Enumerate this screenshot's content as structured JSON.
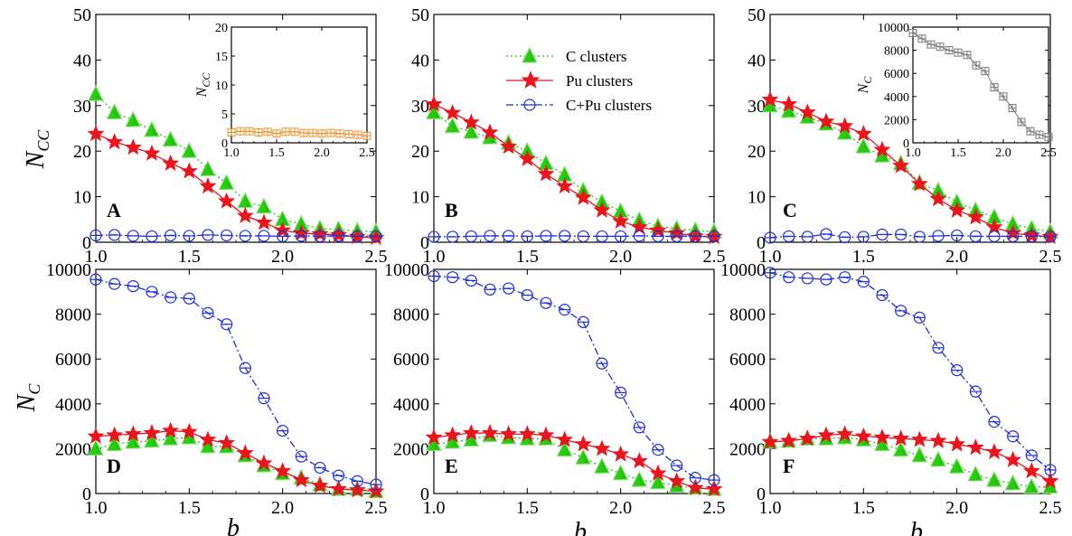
{
  "colors": {
    "c_clusters": "#22c40a",
    "pu_clusters": "#e8141e",
    "cpu_clusters": "#1f2fd6",
    "inset_A": "#e8922e",
    "inset_C": "#7a7a7a"
  },
  "axis_labels": {
    "ncc_main": "N",
    "ncc_sub": "CC",
    "nc_main": "N",
    "nc_sub": "C",
    "x": "b"
  },
  "inset_labels": {
    "ncc_main": "N",
    "ncc_sub": "CC",
    "nc_main": "N",
    "nc_sub": "C"
  },
  "legend": {
    "c_clusters": "C clusters",
    "pu_clusters": "Pu clusters",
    "cpu_clusters": "C+Pu clusters"
  },
  "chart_data": [
    {
      "panel": "A",
      "type": "line",
      "x": [
        1.0,
        1.1,
        1.2,
        1.3,
        1.4,
        1.5,
        1.6,
        1.7,
        1.8,
        1.9,
        2.0,
        2.1,
        2.2,
        2.3,
        2.4,
        2.5
      ],
      "xlim": [
        1.0,
        2.5
      ],
      "ylim": [
        0,
        50
      ],
      "xticks": [
        "1.0",
        "1.5",
        "2.0",
        "2.5"
      ],
      "yticks": [
        "0",
        "10",
        "20",
        "30",
        "40",
        "50"
      ],
      "series": [
        {
          "name": "C clusters",
          "values": [
            32.5,
            28.5,
            26.8,
            24.6,
            22.5,
            20.0,
            16.0,
            13.0,
            9.0,
            7.8,
            5.0,
            4.0,
            3.0,
            2.8,
            2.5,
            2.3
          ]
        },
        {
          "name": "Pu clusters",
          "values": [
            23.8,
            22.0,
            20.8,
            19.5,
            17.3,
            15.6,
            12.3,
            9.0,
            5.8,
            4.3,
            2.6,
            2.0,
            1.8,
            1.6,
            1.2,
            1.0
          ]
        },
        {
          "name": "C+Pu clusters",
          "values": [
            1.5,
            1.6,
            1.4,
            1.3,
            1.5,
            1.4,
            1.6,
            1.5,
            1.4,
            1.4,
            1.3,
            1.4,
            1.3,
            1.4,
            1.3,
            1.3
          ]
        }
      ],
      "inset": {
        "x": [
          1.0,
          1.1,
          1.2,
          1.3,
          1.4,
          1.5,
          1.6,
          1.7,
          1.8,
          1.9,
          2.0,
          2.1,
          2.2,
          2.3,
          2.4,
          2.5
        ],
        "values": [
          1.8,
          2.0,
          2.0,
          1.8,
          1.9,
          1.6,
          1.9,
          1.9,
          1.7,
          1.7,
          1.6,
          1.7,
          1.6,
          1.5,
          1.4,
          1.2
        ],
        "xlim": [
          1.0,
          2.5
        ],
        "ylim": [
          0,
          20
        ],
        "xticks": [
          "1.0",
          "1.5",
          "2.0",
          "2.5"
        ],
        "yticks": [
          "0",
          "5",
          "10",
          "15",
          "20"
        ]
      }
    },
    {
      "panel": "B",
      "type": "line",
      "x": [
        1.0,
        1.1,
        1.2,
        1.3,
        1.4,
        1.5,
        1.6,
        1.7,
        1.8,
        1.9,
        2.0,
        2.1,
        2.2,
        2.3,
        2.4,
        2.5
      ],
      "xlim": [
        1.0,
        2.5
      ],
      "ylim": [
        0,
        50
      ],
      "xticks": [
        "1.0",
        "1.5",
        "2.0",
        "2.5"
      ],
      "yticks": [
        "0",
        "10",
        "20",
        "30",
        "40",
        "50"
      ],
      "series": [
        {
          "name": "C clusters",
          "values": [
            28.5,
            25.5,
            24.2,
            23.0,
            21.8,
            20.0,
            17.3,
            14.8,
            11.3,
            8.8,
            6.8,
            4.8,
            3.5,
            3.0,
            2.6,
            2.3
          ]
        },
        {
          "name": "Pu clusters",
          "values": [
            30.3,
            28.4,
            26.3,
            24.1,
            21.0,
            18.3,
            15.0,
            12.3,
            9.8,
            7.0,
            4.6,
            3.3,
            2.6,
            2.0,
            1.3,
            1.2
          ]
        },
        {
          "name": "C+Pu clusters",
          "values": [
            1.2,
            1.2,
            1.3,
            1.4,
            1.4,
            1.3,
            1.4,
            1.4,
            1.3,
            1.3,
            1.3,
            1.4,
            1.3,
            1.3,
            1.3,
            1.3
          ]
        }
      ]
    },
    {
      "panel": "C",
      "type": "line",
      "x": [
        1.0,
        1.1,
        1.2,
        1.3,
        1.4,
        1.5,
        1.6,
        1.7,
        1.8,
        1.9,
        2.0,
        2.1,
        2.2,
        2.3,
        2.4,
        2.5
      ],
      "xlim": [
        1.0,
        2.5
      ],
      "ylim": [
        0,
        50
      ],
      "xticks": [
        "1.0",
        "1.5",
        "2.0",
        "2.5"
      ],
      "yticks": [
        "0",
        "10",
        "20",
        "30",
        "40",
        "50"
      ],
      "series": [
        {
          "name": "C clusters",
          "values": [
            30.0,
            28.8,
            27.5,
            26.0,
            24.0,
            21.0,
            19.0,
            17.3,
            13.0,
            11.3,
            8.8,
            7.0,
            5.5,
            4.0,
            3.0,
            2.3
          ]
        },
        {
          "name": "Pu clusters",
          "values": [
            31.3,
            30.3,
            28.5,
            26.5,
            25.5,
            23.8,
            20.3,
            16.8,
            12.8,
            9.5,
            7.0,
            5.5,
            3.3,
            2.0,
            1.5,
            1.2
          ]
        },
        {
          "name": "C+Pu clusters",
          "values": [
            1.0,
            1.3,
            1.2,
            1.8,
            1.1,
            1.2,
            1.7,
            1.7,
            1.2,
            1.4,
            1.5,
            1.3,
            1.3,
            1.3,
            1.3,
            1.2
          ]
        }
      ],
      "inset": {
        "x": [
          1.0,
          1.1,
          1.2,
          1.3,
          1.4,
          1.5,
          1.6,
          1.7,
          1.8,
          1.9,
          2.0,
          2.1,
          2.2,
          2.3,
          2.4,
          2.5
        ],
        "values": [
          9500,
          9000,
          8500,
          8300,
          8000,
          7800,
          7600,
          6700,
          6200,
          4800,
          4000,
          3000,
          1800,
          1000,
          700,
          500
        ],
        "xlim": [
          1.0,
          2.5
        ],
        "ylim": [
          0,
          10000
        ],
        "xticks": [
          "1.0",
          "1.5",
          "2.0",
          "2.5"
        ],
        "yticks": [
          "0",
          "2000",
          "4000",
          "6000",
          "8000",
          "10000"
        ]
      }
    },
    {
      "panel": "D",
      "type": "line",
      "x": [
        1.0,
        1.1,
        1.2,
        1.3,
        1.4,
        1.5,
        1.6,
        1.7,
        1.8,
        1.9,
        2.0,
        2.1,
        2.2,
        2.3,
        2.4,
        2.5
      ],
      "xlim": [
        1.0,
        2.5
      ],
      "ylim": [
        0,
        10000
      ],
      "xticks": [
        "1.0",
        "1.5",
        "2.0",
        "2.5"
      ],
      "yticks": [
        "0",
        "2000",
        "4000",
        "6000",
        "8000",
        "10000"
      ],
      "series": [
        {
          "name": "C clusters",
          "values": [
            2000,
            2200,
            2300,
            2350,
            2450,
            2500,
            2100,
            2100,
            1700,
            1250,
            900,
            700,
            400,
            200,
            200,
            100
          ]
        },
        {
          "name": "Pu clusters",
          "values": [
            2550,
            2600,
            2650,
            2700,
            2800,
            2750,
            2400,
            2250,
            1800,
            1350,
            1000,
            600,
            350,
            200,
            150,
            100
          ]
        },
        {
          "name": "C+Pu clusters",
          "values": [
            9550,
            9350,
            9250,
            9000,
            8750,
            8700,
            8050,
            7550,
            5600,
            4250,
            2800,
            1650,
            1150,
            800,
            550,
            400
          ]
        }
      ]
    },
    {
      "panel": "E",
      "type": "line",
      "x": [
        1.0,
        1.1,
        1.2,
        1.3,
        1.4,
        1.5,
        1.6,
        1.7,
        1.8,
        1.9,
        2.0,
        2.1,
        2.2,
        2.3,
        2.4,
        2.5
      ],
      "xlim": [
        1.0,
        2.5
      ],
      "ylim": [
        0,
        10000
      ],
      "xticks": [
        "1.0",
        "1.5",
        "2.0",
        "2.5"
      ],
      "yticks": [
        "0",
        "2000",
        "4000",
        "6000",
        "8000",
        "10000"
      ],
      "series": [
        {
          "name": "C clusters",
          "values": [
            2200,
            2300,
            2400,
            2600,
            2500,
            2450,
            2450,
            1950,
            1600,
            1200,
            900,
            600,
            500,
            350,
            250,
            200
          ]
        },
        {
          "name": "Pu clusters",
          "values": [
            2500,
            2600,
            2700,
            2700,
            2650,
            2650,
            2600,
            2400,
            2200,
            2000,
            1750,
            1450,
            900,
            550,
            250,
            200
          ]
        },
        {
          "name": "C+Pu clusters",
          "values": [
            9700,
            9650,
            9500,
            9100,
            9150,
            8850,
            8500,
            8200,
            7650,
            5800,
            4500,
            2950,
            1950,
            1250,
            700,
            600
          ]
        }
      ]
    },
    {
      "panel": "F",
      "type": "line",
      "x": [
        1.0,
        1.1,
        1.2,
        1.3,
        1.4,
        1.5,
        1.6,
        1.7,
        1.8,
        1.9,
        2.0,
        2.1,
        2.2,
        2.3,
        2.4,
        2.5
      ],
      "xlim": [
        1.0,
        2.5
      ],
      "ylim": [
        0,
        10000
      ],
      "xticks": [
        "1.0",
        "1.5",
        "2.0",
        "2.5"
      ],
      "yticks": [
        "0",
        "2000",
        "4000",
        "6000",
        "8000",
        "10000"
      ],
      "series": [
        {
          "name": "C clusters",
          "values": [
            2300,
            2350,
            2450,
            2450,
            2500,
            2400,
            2200,
            1950,
            1700,
            1500,
            1200,
            850,
            600,
            450,
            300,
            300
          ]
        },
        {
          "name": "Pu clusters",
          "values": [
            2300,
            2350,
            2450,
            2600,
            2650,
            2550,
            2500,
            2450,
            2400,
            2350,
            2200,
            2050,
            1850,
            1500,
            1000,
            550
          ]
        },
        {
          "name": "C+Pu clusters",
          "values": [
            9850,
            9650,
            9600,
            9550,
            9650,
            9450,
            8850,
            8150,
            7850,
            6500,
            5500,
            4550,
            3200,
            2550,
            1700,
            1050
          ]
        }
      ]
    }
  ]
}
